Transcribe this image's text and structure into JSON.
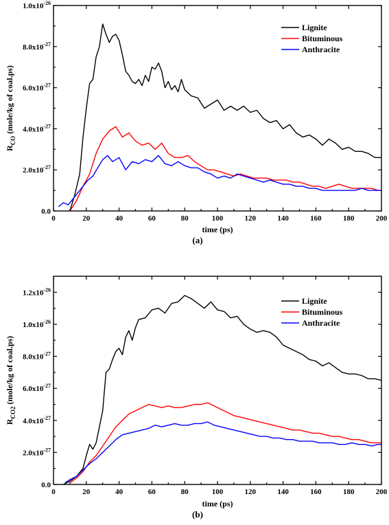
{
  "chart_data": [
    {
      "type": "line",
      "panel_label": "(a)",
      "xlabel": "time (ps)",
      "ylabel_main": "R",
      "ylabel_sub": "CO",
      "ylabel_rest": " (mole/kg of coal.ps)",
      "xlim": [
        0,
        200
      ],
      "ylim": [
        0,
        1e-26
      ],
      "xticks": [
        0,
        20,
        40,
        60,
        80,
        100,
        120,
        140,
        160,
        180,
        200
      ],
      "yticks": [
        {
          "value": 0,
          "mantissa": "0.0",
          "exp": ""
        },
        {
          "value": 2e-27,
          "mantissa": "2.0x10",
          "exp": "-27"
        },
        {
          "value": 4e-27,
          "mantissa": "4.0x10",
          "exp": "-27"
        },
        {
          "value": 6e-27,
          "mantissa": "6.0x10",
          "exp": "-27"
        },
        {
          "value": 8e-27,
          "mantissa": "8.0x10",
          "exp": "-27"
        },
        {
          "value": 1e-26,
          "mantissa": "1.0x10",
          "exp": "-26"
        }
      ],
      "legend_position": "top-right",
      "series": [
        {
          "name": "Lignite",
          "color": "#000000",
          "x": [
            10,
            13,
            16,
            18,
            20,
            22,
            24,
            26,
            28,
            30,
            32,
            34,
            36,
            38,
            40,
            42,
            44,
            46,
            48,
            50,
            52,
            54,
            56,
            58,
            60,
            62,
            64,
            66,
            68,
            70,
            72,
            74,
            76,
            78,
            80,
            84,
            88,
            92,
            96,
            100,
            104,
            108,
            112,
            116,
            120,
            124,
            128,
            132,
            136,
            140,
            144,
            148,
            152,
            156,
            160,
            164,
            168,
            172,
            176,
            180,
            184,
            188,
            192,
            196,
            200
          ],
          "y": [
            0,
            8e-28,
            1.8e-27,
            3.6e-27,
            5e-27,
            6.2e-27,
            6.4e-27,
            7.5e-27,
            8e-27,
            9.1e-27,
            8.6e-27,
            8.2e-27,
            8.5e-27,
            8.6e-27,
            8.3e-27,
            7.6e-27,
            6.8e-27,
            6.6e-27,
            6.3e-27,
            6.2e-27,
            6.4e-27,
            6.1e-27,
            6.6e-27,
            6.3e-27,
            7e-27,
            6.9e-27,
            7.2e-27,
            6.8e-27,
            6e-27,
            6.3e-27,
            5.9e-27,
            6.1e-27,
            5.8e-27,
            6.4e-27,
            5.9e-27,
            5.6e-27,
            5.5e-27,
            5e-27,
            5.2e-27,
            5.4e-27,
            4.9e-27,
            5.1e-27,
            4.9e-27,
            5.1e-27,
            4.8e-27,
            4.9e-27,
            4.5e-27,
            4.3e-27,
            4.4e-27,
            4e-27,
            4.2e-27,
            3.8e-27,
            3.6e-27,
            3.7e-27,
            3.5e-27,
            3.2e-27,
            3.5e-27,
            3.3e-27,
            3e-27,
            3.1e-27,
            2.9e-27,
            2.9e-27,
            2.8e-27,
            2.6e-27,
            2.6e-27
          ]
        },
        {
          "name": "Bituminous",
          "color": "#ff0000",
          "x": [
            10,
            14,
            18,
            22,
            26,
            30,
            34,
            38,
            42,
            46,
            50,
            54,
            58,
            62,
            66,
            70,
            74,
            78,
            82,
            86,
            90,
            94,
            98,
            102,
            106,
            110,
            114,
            118,
            122,
            126,
            130,
            134,
            138,
            142,
            146,
            150,
            154,
            158,
            162,
            166,
            170,
            174,
            178,
            182,
            186,
            190,
            194,
            198,
            200
          ],
          "y": [
            0,
            5e-28,
            1.2e-27,
            1.8e-27,
            2.8e-27,
            3.5e-27,
            3.9e-27,
            4.1e-27,
            3.6e-27,
            3.8e-27,
            3.4e-27,
            3.2e-27,
            3.3e-27,
            3e-27,
            3.3e-27,
            2.8e-27,
            2.6e-27,
            2.6e-27,
            2.7e-27,
            2.4e-27,
            2.2e-27,
            2e-27,
            2e-27,
            1.9e-27,
            1.8e-27,
            1.7e-27,
            1.8e-27,
            1.7e-27,
            1.6e-27,
            1.6e-27,
            1.6e-27,
            1.5e-27,
            1.5e-27,
            1.5e-27,
            1.4e-27,
            1.4e-27,
            1.3e-27,
            1.2e-27,
            1.2e-27,
            1.1e-27,
            1.2e-27,
            1.3e-27,
            1.2e-27,
            1.1e-27,
            1.1e-27,
            1.1e-27,
            1.1e-27,
            1e-27,
            1e-27
          ]
        },
        {
          "name": "Anthracite",
          "color": "#0000ff",
          "x": [
            3,
            6,
            9,
            12,
            15,
            18,
            21,
            24,
            27,
            30,
            33,
            36,
            40,
            44,
            48,
            52,
            56,
            60,
            64,
            68,
            72,
            76,
            80,
            84,
            88,
            92,
            96,
            100,
            104,
            108,
            112,
            116,
            120,
            124,
            128,
            132,
            136,
            140,
            144,
            148,
            152,
            156,
            160,
            164,
            168,
            172,
            176,
            180,
            184,
            188,
            192,
            196,
            200
          ],
          "y": [
            2e-28,
            4e-28,
            3e-28,
            6e-28,
            9e-28,
            1.2e-27,
            1.5e-27,
            1.7e-27,
            2.1e-27,
            2.5e-27,
            2.7e-27,
            2.4e-27,
            2.6e-27,
            2e-27,
            2.4e-27,
            2.3e-27,
            2.5e-27,
            2.4e-27,
            2.7e-27,
            2.3e-27,
            2.2e-27,
            2.4e-27,
            2.2e-27,
            2.1e-27,
            2.1e-27,
            1.9e-27,
            1.8e-27,
            1.6e-27,
            1.7e-27,
            1.6e-27,
            1.8e-27,
            1.7e-27,
            1.6e-27,
            1.5e-27,
            1.4e-27,
            1.5e-27,
            1.4e-27,
            1.3e-27,
            1.3e-27,
            1.2e-27,
            1.2e-27,
            1.1e-27,
            1.1e-27,
            1e-27,
            1e-27,
            1e-27,
            1e-27,
            1e-27,
            1e-27,
            1.1e-27,
            1e-27,
            1e-27,
            1e-27
          ]
        }
      ]
    },
    {
      "type": "line",
      "panel_label": "(b)",
      "xlabel": "time (ps)",
      "ylabel_main": "R",
      "ylabel_sub": "CO2",
      "ylabel_rest": " (mole/kg of coal.ps)",
      "xlim": [
        0,
        200
      ],
      "ylim": [
        0,
        1.3e-26
      ],
      "xticks": [
        0,
        20,
        40,
        60,
        80,
        100,
        120,
        140,
        160,
        180,
        200
      ],
      "yticks": [
        {
          "value": 0,
          "mantissa": "0.0",
          "exp": ""
        },
        {
          "value": 2e-27,
          "mantissa": "2.0x10",
          "exp": "-27"
        },
        {
          "value": 4e-27,
          "mantissa": "4.0x10",
          "exp": "-27"
        },
        {
          "value": 6e-27,
          "mantissa": "6.0x10",
          "exp": "-27"
        },
        {
          "value": 8e-27,
          "mantissa": "8.0x10",
          "exp": "-27"
        },
        {
          "value": 1e-26,
          "mantissa": "1.0x10",
          "exp": "-26"
        },
        {
          "value": 1.2e-26,
          "mantissa": "1.2x10",
          "exp": "-26"
        }
      ],
      "legend_position": "top-right",
      "series": [
        {
          "name": "Lignite",
          "color": "#000000",
          "x": [
            6,
            10,
            14,
            18,
            20,
            22,
            24,
            26,
            28,
            30,
            32,
            34,
            36,
            38,
            40,
            42,
            44,
            46,
            48,
            50,
            52,
            56,
            60,
            64,
            68,
            72,
            76,
            80,
            84,
            88,
            92,
            96,
            100,
            104,
            108,
            112,
            116,
            120,
            124,
            128,
            132,
            136,
            140,
            144,
            148,
            152,
            156,
            160,
            164,
            168,
            172,
            176,
            180,
            184,
            188,
            192,
            196,
            200
          ],
          "y": [
            0,
            2e-28,
            5e-28,
            1e-27,
            1.8e-27,
            2.5e-27,
            2.2e-27,
            2.6e-27,
            3.6e-27,
            4.6e-27,
            7e-27,
            7.2e-27,
            7.8e-27,
            8.3e-27,
            8.5e-27,
            8.1e-27,
            9.2e-27,
            9.6e-27,
            9e-27,
            9.8e-27,
            1.03e-26,
            1.04e-26,
            1.09e-26,
            1.1e-26,
            1.07e-26,
            1.13e-26,
            1.14e-26,
            1.18e-26,
            1.16e-26,
            1.13e-26,
            1.1e-26,
            1.14e-26,
            1.09e-26,
            1.08e-26,
            1.04e-26,
            1.05e-26,
            1e-26,
            9.7e-27,
            9.5e-27,
            9.6e-27,
            9.5e-27,
            9.2e-27,
            8.7e-27,
            8.5e-27,
            8.3e-27,
            8.1e-27,
            7.8e-27,
            7.7e-27,
            7.4e-27,
            7.6e-27,
            7.3e-27,
            7e-27,
            6.9e-27,
            6.9e-27,
            6.8e-27,
            6.6e-27,
            6.6e-27,
            6.5e-27
          ]
        },
        {
          "name": "Bituminous",
          "color": "#ff0000",
          "x": [
            10,
            14,
            18,
            22,
            26,
            30,
            34,
            38,
            42,
            46,
            50,
            54,
            58,
            62,
            66,
            70,
            74,
            78,
            82,
            86,
            90,
            94,
            98,
            102,
            106,
            110,
            114,
            118,
            122,
            126,
            130,
            134,
            138,
            142,
            146,
            150,
            154,
            158,
            162,
            166,
            170,
            174,
            178,
            182,
            186,
            190,
            194,
            198,
            200
          ],
          "y": [
            1e-28,
            4e-28,
            8e-28,
            1.4e-27,
            1.8e-27,
            2.4e-27,
            3e-27,
            3.6e-27,
            4e-27,
            4.4e-27,
            4.6e-27,
            4.8e-27,
            5e-27,
            4.9e-27,
            4.8e-27,
            4.9e-27,
            4.8e-27,
            4.8e-27,
            4.9e-27,
            5e-27,
            5e-27,
            5.1e-27,
            4.9e-27,
            4.7e-27,
            4.5e-27,
            4.3e-27,
            4.2e-27,
            4.1e-27,
            4e-27,
            3.9e-27,
            3.8e-27,
            3.7e-27,
            3.6e-27,
            3.5e-27,
            3.4e-27,
            3.4e-27,
            3.3e-27,
            3.2e-27,
            3.2e-27,
            3.1e-27,
            3e-27,
            3e-27,
            2.9e-27,
            2.8e-27,
            2.8e-27,
            2.7e-27,
            2.6e-27,
            2.6e-27,
            2.6e-27
          ]
        },
        {
          "name": "Anthracite",
          "color": "#0000ff",
          "x": [
            7,
            10,
            14,
            18,
            22,
            26,
            30,
            34,
            38,
            42,
            46,
            50,
            54,
            58,
            62,
            66,
            70,
            74,
            78,
            82,
            86,
            90,
            94,
            98,
            102,
            106,
            110,
            114,
            118,
            122,
            126,
            130,
            134,
            138,
            142,
            146,
            150,
            154,
            158,
            162,
            166,
            170,
            174,
            178,
            182,
            186,
            190,
            194,
            198,
            200
          ],
          "y": [
            1e-28,
            3e-28,
            5e-28,
            9e-28,
            1.3e-27,
            1.6e-27,
            2e-27,
            2.4e-27,
            2.8e-27,
            3.1e-27,
            3.2e-27,
            3.3e-27,
            3.4e-27,
            3.5e-27,
            3.7e-27,
            3.6e-27,
            3.7e-27,
            3.8e-27,
            3.7e-27,
            3.7e-27,
            3.8e-27,
            3.8e-27,
            3.9e-27,
            3.7e-27,
            3.6e-27,
            3.5e-27,
            3.4e-27,
            3.3e-27,
            3.2e-27,
            3.1e-27,
            3e-27,
            3e-27,
            2.9e-27,
            2.9e-27,
            2.8e-27,
            2.8e-27,
            2.7e-27,
            2.7e-27,
            2.7e-27,
            2.6e-27,
            2.6e-27,
            2.6e-27,
            2.5e-27,
            2.5e-27,
            2.6e-27,
            2.5e-27,
            2.5e-27,
            2.4e-27,
            2.5e-27,
            2.5e-27
          ]
        }
      ]
    }
  ]
}
